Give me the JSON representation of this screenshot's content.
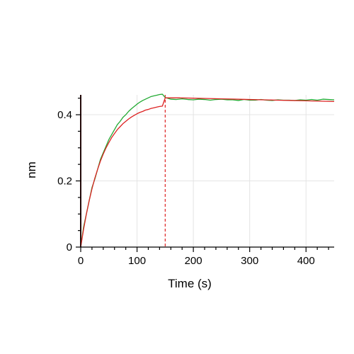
{
  "chart_data": {
    "type": "line",
    "title": "",
    "xlabel": "Time (s)",
    "ylabel": "nm",
    "xlim": [
      0,
      450
    ],
    "ylim": [
      0,
      0.46
    ],
    "x_ticks": [
      0,
      100,
      200,
      300,
      400
    ],
    "x_tick_labels": [
      "0",
      "100",
      "200",
      "300",
      "400"
    ],
    "x_minor_step": 20,
    "y_ticks": [
      0,
      0.2,
      0.4
    ],
    "y_tick_labels": [
      "0",
      "0.2",
      "0.4"
    ],
    "y_minor_step": 0.05,
    "grid": true,
    "legend": "none",
    "markers": [
      {
        "x": 0,
        "color": "#5c1a1a",
        "style": "solid"
      },
      {
        "x": 150,
        "color": "#dd2222",
        "style": "dashed"
      }
    ],
    "series": [
      {
        "role": "measured",
        "color": "#22aa33",
        "x": [
          0,
          5,
          10,
          15,
          20,
          25,
          30,
          35,
          40,
          45,
          50,
          55,
          60,
          65,
          70,
          75,
          80,
          85,
          90,
          95,
          100,
          105,
          110,
          115,
          120,
          125,
          130,
          135,
          140,
          145,
          150,
          160,
          170,
          180,
          190,
          200,
          210,
          220,
          230,
          240,
          250,
          260,
          270,
          280,
          290,
          300,
          310,
          320,
          330,
          340,
          350,
          360,
          370,
          380,
          390,
          400,
          410,
          420,
          430,
          440,
          450
        ],
        "y": [
          0.0,
          0.06,
          0.1,
          0.14,
          0.18,
          0.205,
          0.235,
          0.265,
          0.285,
          0.305,
          0.325,
          0.34,
          0.355,
          0.37,
          0.38,
          0.392,
          0.4,
          0.41,
          0.418,
          0.425,
          0.432,
          0.438,
          0.443,
          0.447,
          0.451,
          0.455,
          0.457,
          0.459,
          0.461,
          0.462,
          0.452,
          0.447,
          0.446,
          0.448,
          0.446,
          0.445,
          0.447,
          0.446,
          0.444,
          0.446,
          0.447,
          0.445,
          0.445,
          0.443,
          0.446,
          0.444,
          0.444,
          0.446,
          0.444,
          0.443,
          0.445,
          0.444,
          0.444,
          0.443,
          0.445,
          0.444,
          0.446,
          0.444,
          0.447,
          0.446,
          0.445
        ]
      },
      {
        "role": "fit",
        "color": "#dd2222",
        "x": [
          0,
          5,
          10,
          15,
          20,
          25,
          30,
          35,
          40,
          45,
          50,
          55,
          60,
          65,
          70,
          75,
          80,
          85,
          90,
          95,
          100,
          105,
          110,
          115,
          120,
          125,
          130,
          135,
          140,
          145,
          150,
          175,
          200,
          225,
          250,
          275,
          300,
          325,
          350,
          375,
          400,
          425,
          450
        ],
        "y": [
          0.0,
          0.053,
          0.099,
          0.14,
          0.176,
          0.208,
          0.235,
          0.26,
          0.281,
          0.3,
          0.316,
          0.331,
          0.343,
          0.355,
          0.364,
          0.373,
          0.38,
          0.387,
          0.393,
          0.398,
          0.403,
          0.407,
          0.41,
          0.414,
          0.416,
          0.419,
          0.421,
          0.423,
          0.425,
          0.426,
          0.451,
          0.451,
          0.45,
          0.449,
          0.448,
          0.447,
          0.446,
          0.445,
          0.444,
          0.443,
          0.442,
          0.441,
          0.44
        ]
      }
    ]
  }
}
